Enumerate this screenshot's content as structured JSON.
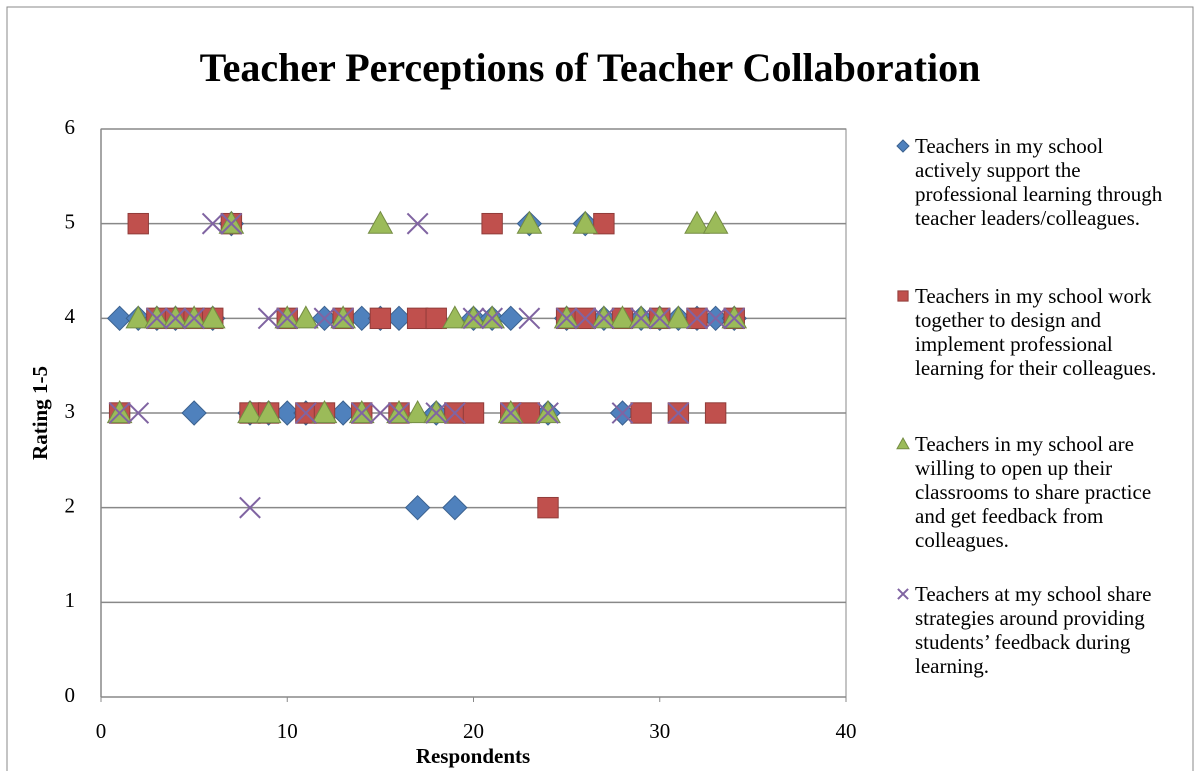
{
  "chart_data": {
    "type": "scatter",
    "title": "Teacher Perceptions of Teacher Collaboration",
    "x_label": "Respondents",
    "y_label": "Rating 1-5",
    "x": [
      1,
      2,
      3,
      4,
      5,
      6,
      7,
      8,
      9,
      10,
      11,
      12,
      13,
      14,
      15,
      16,
      17,
      18,
      19,
      20,
      21,
      22,
      23,
      24,
      25,
      26,
      27,
      28,
      29,
      30,
      31,
      32,
      33,
      34
    ],
    "series": [
      {
        "name": "Teachers in my school actively support the professional learning through teacher leaders/colleagues.",
        "color": "#4f81bd",
        "marker": "diamond",
        "values": [
          4,
          4,
          4,
          4,
          3,
          4,
          5,
          3,
          3,
          3,
          3,
          4,
          3,
          4,
          4,
          4,
          2,
          3,
          2,
          4,
          4,
          4,
          5,
          3,
          4,
          5,
          4,
          3,
          4,
          4,
          4,
          4,
          4,
          4
        ]
      },
      {
        "name": "Teachers in my school work together to design and implement professional learning for their colleagues.",
        "color": "#c0504d",
        "marker": "square",
        "values": [
          3,
          5,
          4,
          4,
          4,
          4,
          5,
          3,
          3,
          4,
          3,
          3,
          4,
          3,
          4,
          3,
          4,
          4,
          3,
          3,
          5,
          3,
          3,
          2,
          4,
          4,
          5,
          4,
          3,
          4,
          3,
          4,
          3,
          4
        ]
      },
      {
        "name": "Teachers in my school are willing to open up their classrooms to share practice and get feedback from colleagues.",
        "color": "#9bbb59",
        "marker": "triangle",
        "values": [
          3,
          4,
          4,
          4,
          4,
          4,
          5,
          3,
          3,
          4,
          4,
          3,
          4,
          3,
          5,
          3,
          3,
          3,
          4,
          4,
          4,
          3,
          5,
          3,
          4,
          5,
          4,
          4,
          4,
          4,
          4,
          5,
          5,
          4
        ]
      },
      {
        "name": "Teachers at my school share strategies around providing students’ feedback during learning.",
        "color": "#8064a2",
        "marker": "x",
        "values": [
          3,
          3,
          4,
          4,
          4,
          5,
          5,
          2,
          4,
          4,
          3,
          4,
          4,
          3,
          3,
          3,
          5,
          3,
          3,
          4,
          4,
          3,
          4,
          3,
          4,
          4,
          4,
          3,
          4,
          4,
          3,
          4,
          4,
          4
        ]
      }
    ],
    "xlim": [
      0,
      40
    ],
    "xticks": [
      0,
      10,
      20,
      30,
      40
    ],
    "ylim": [
      0,
      6
    ],
    "yticks": [
      0,
      1,
      2,
      3,
      4,
      5,
      6
    ],
    "grid": true,
    "legend": "right"
  }
}
